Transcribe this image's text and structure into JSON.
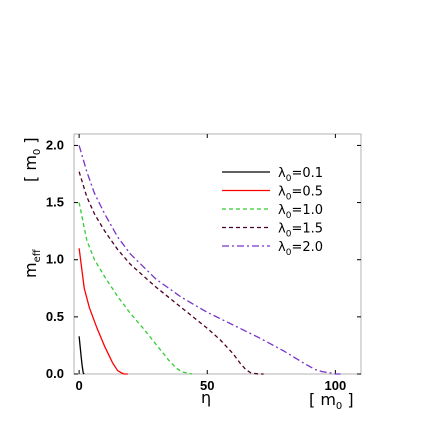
{
  "chart_data": {
    "type": "line",
    "ylabel": "m_eff",
    "ylabel_unit": "[ m_0 ]",
    "xlabel": "η",
    "xlabel_unit": "[ m_0 ]",
    "xlim": [
      -2,
      110
    ],
    "ylim": [
      0,
      2.1
    ],
    "x_ticks": [
      0,
      50,
      100
    ],
    "y_ticks": [
      0.0,
      0.5,
      1.0,
      1.5,
      2.0
    ],
    "x_tick_labels": [
      "0",
      "50",
      "100"
    ],
    "y_tick_labels": [
      "0.0",
      "0.5",
      "1.0",
      "1.5",
      "2.0"
    ],
    "legend_position": "upper-right",
    "series": [
      {
        "name": "λ0=0.1",
        "color": "#000000",
        "dash": "solid",
        "x": [
          0,
          0.4,
          0.8,
          1.2,
          1.6,
          2.0
        ],
        "y": [
          0.33,
          0.24,
          0.15,
          0.07,
          0.01,
          0.0
        ]
      },
      {
        "name": "λ0=0.5",
        "color": "#ff0000",
        "dash": "solid",
        "x": [
          0,
          2,
          4,
          7,
          10,
          13,
          15,
          16.5,
          17.5,
          19
        ],
        "y": [
          1.1,
          0.75,
          0.58,
          0.4,
          0.24,
          0.1,
          0.03,
          0.01,
          0.0,
          0.0
        ]
      },
      {
        "name": "λ0=1.0",
        "color": "#33cc33",
        "dash": "dashed",
        "x": [
          0,
          3,
          6,
          10,
          15,
          20,
          25,
          30,
          35,
          38,
          40,
          42,
          44
        ],
        "y": [
          1.5,
          1.17,
          1.0,
          0.85,
          0.68,
          0.53,
          0.4,
          0.26,
          0.12,
          0.05,
          0.02,
          0.01,
          0.0
        ]
      },
      {
        "name": "λ0=1.5",
        "color": "#4d0026",
        "dash": "dashed",
        "x": [
          0,
          3,
          6,
          10,
          15,
          20,
          30,
          40,
          50,
          55,
          60,
          63,
          65,
          67,
          70,
          72
        ],
        "y": [
          1.77,
          1.55,
          1.4,
          1.25,
          1.09,
          0.96,
          0.76,
          0.58,
          0.4,
          0.3,
          0.18,
          0.09,
          0.04,
          0.01,
          0.0,
          0.0
        ]
      },
      {
        "name": "λ0=2.0",
        "color": "#7733cc",
        "dash": "dashdot",
        "x": [
          0,
          3,
          6,
          10,
          15,
          20,
          30,
          40,
          50,
          60,
          70,
          80,
          88,
          92,
          95,
          98,
          100,
          102
        ],
        "y": [
          2.0,
          1.77,
          1.58,
          1.4,
          1.2,
          1.05,
          0.83,
          0.67,
          0.54,
          0.43,
          0.32,
          0.2,
          0.09,
          0.04,
          0.02,
          0.01,
          0.0,
          0.0
        ]
      }
    ]
  }
}
